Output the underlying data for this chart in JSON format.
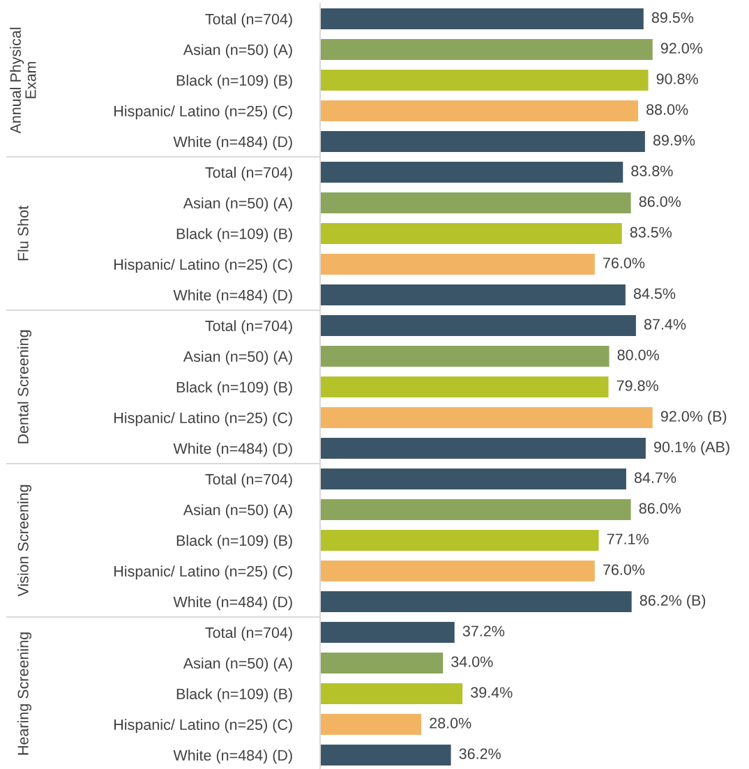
{
  "chart_data": [
    {
      "type": "bar",
      "orientation": "horizontal",
      "title": "Annual Physical Exam",
      "tick_labels": "y",
      "categories": [
        "Total (n=704)",
        "Asian (n=50) (A)",
        "Black (n=109) (B)",
        "Hispanic/ Latino (n=25) (C)",
        "White (n=484) (D)"
      ],
      "values": [
        89.5,
        92.0,
        90.8,
        88.0,
        89.9
      ],
      "value_labels": [
        "89.5%",
        "92.0%",
        "90.8%",
        "88.0%",
        "89.9%"
      ],
      "colors": [
        "#3b5568",
        "#8ba65c",
        "#b5c22a",
        "#f2b463",
        "#3b5568"
      ]
    },
    {
      "type": "bar",
      "orientation": "horizontal",
      "title": "Flu Shot",
      "tick_labels": "y",
      "categories": [
        "Total (n=704)",
        "Asian (n=50) (A)",
        "Black (n=109) (B)",
        "Hispanic/ Latino (n=25) (C)",
        "White (n=484) (D)"
      ],
      "values": [
        83.8,
        86.0,
        83.5,
        76.0,
        84.5
      ],
      "value_labels": [
        "83.8%",
        "86.0%",
        "83.5%",
        "76.0%",
        "84.5%"
      ],
      "colors": [
        "#3b5568",
        "#8ba65c",
        "#b5c22a",
        "#f2b463",
        "#3b5568"
      ]
    },
    {
      "type": "bar",
      "orientation": "horizontal",
      "title": "Dental Screening",
      "tick_labels": "y",
      "categories": [
        "Total (n=704)",
        "Asian (n=50) (A)",
        "Black (n=109) (B)",
        "Hispanic/ Latino (n=25) (C)",
        "White (n=484) (D)"
      ],
      "values": [
        87.4,
        80.0,
        79.8,
        92.0,
        90.1
      ],
      "value_labels": [
        "87.4%",
        "80.0%",
        "79.8%",
        "92.0% (B)",
        "90.1% (AB)"
      ],
      "colors": [
        "#3b5568",
        "#8ba65c",
        "#b5c22a",
        "#f2b463",
        "#3b5568"
      ]
    },
    {
      "type": "bar",
      "orientation": "horizontal",
      "title": "Vision Screening",
      "tick_labels": "y",
      "categories": [
        "Total (n=704)",
        "Asian (n=50) (A)",
        "Black (n=109) (B)",
        "Hispanic/ Latino (n=25) (C)",
        "White (n=484) (D)"
      ],
      "values": [
        84.7,
        86.0,
        77.1,
        76.0,
        86.2
      ],
      "value_labels": [
        "84.7%",
        "86.0%",
        "77.1%",
        "76.0%",
        "86.2% (B)"
      ],
      "colors": [
        "#3b5568",
        "#8ba65c",
        "#b5c22a",
        "#f2b463",
        "#3b5568"
      ]
    },
    {
      "type": "bar",
      "orientation": "horizontal",
      "title": "Hearing Screening",
      "tick_labels": "y",
      "categories": [
        "Total (n=704)",
        "Asian (n=50) (A)",
        "Black (n=109) (B)",
        "Hispanic/ Latino (n=25) (C)",
        "White (n=484) (D)"
      ],
      "values": [
        37.2,
        34.0,
        39.4,
        28.0,
        36.2
      ],
      "value_labels": [
        "37.2%",
        "34.0%",
        "39.4%",
        "28.0%",
        "36.2%"
      ],
      "colors": [
        "#3b5568",
        "#8ba65c",
        "#b5c22a",
        "#f2b463",
        "#3b5568"
      ]
    }
  ]
}
